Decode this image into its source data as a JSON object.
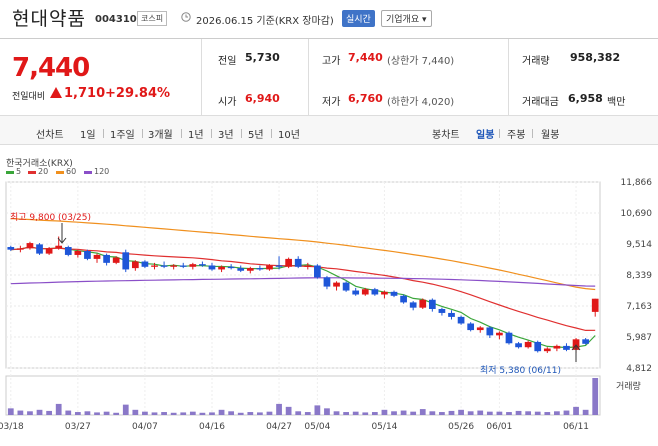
{
  "header": {
    "stock_name": "현대약품",
    "stock_code": "004310",
    "market_badge": "코스피",
    "date_info": "2026.06.15 기준(KRX 장마감)",
    "realtime_label": "실시간",
    "company_button_label": "기업개요 ▾"
  },
  "price": {
    "current": "7,440",
    "change_label": "전일대비",
    "change_value": "1,710",
    "change_pct": "+29.84%",
    "up_color": "#e01818"
  },
  "stats": {
    "prev_close_label": "전일",
    "prev_close": "5,730",
    "high_label": "고가",
    "high": "7,440",
    "upper_limit": "(상한가 7,440)",
    "volume_label": "거래량",
    "volume": "958,382",
    "open_label": "시가",
    "open": "6,940",
    "low_label": "저가",
    "low": "6,760",
    "lower_limit": "(하한가 4,020)",
    "amount_label": "거래대금",
    "amount": "6,958",
    "amount_unit": "백만"
  },
  "period_tabs": {
    "line_chart": "선차트",
    "items": [
      "1일",
      "1주일",
      "3개월",
      "1년",
      "3년",
      "5년",
      "10년"
    ],
    "candle_chart": "봉차트",
    "candle_items": [
      "일봉",
      "주봉",
      "월봉"
    ],
    "active_candle": "일봉"
  },
  "chart": {
    "exchange": "한국거래소(KRX)",
    "legend": [
      {
        "label": "5",
        "color": "#3aa63a"
      },
      {
        "label": "20",
        "color": "#e03030"
      },
      {
        "label": "60",
        "color": "#f0901e"
      },
      {
        "label": "120",
        "color": "#8a4fc8"
      }
    ],
    "y_ticks": [
      "11,866",
      "10,690",
      "9,514",
      "8,339",
      "7,163",
      "5,987",
      "4,812"
    ],
    "x_ticks": [
      "03/18",
      "03/27",
      "04/07",
      "04/16",
      "04/27",
      "05/04",
      "05/14",
      "05/26",
      "06/01",
      "06/11"
    ],
    "high_annotation": "최고 9,800 (03/25)",
    "low_annotation": "최저 5,380 (06/11)",
    "volume_label": "거래량"
  },
  "chart_data": {
    "type": "candlestick",
    "ylim": [
      4812,
      11866
    ],
    "dates": [
      "03/18",
      "03/19",
      "03/20",
      "03/23",
      "03/24",
      "03/25",
      "03/26",
      "03/27",
      "03/30",
      "03/31",
      "04/01",
      "04/02",
      "04/03",
      "04/06",
      "04/07",
      "04/08",
      "04/09",
      "04/10",
      "04/13",
      "04/14",
      "04/15",
      "04/16",
      "04/17",
      "04/20",
      "04/21",
      "04/22",
      "04/23",
      "04/24",
      "04/27",
      "04/28",
      "04/29",
      "04/30",
      "05/04",
      "05/06",
      "05/07",
      "05/08",
      "05/11",
      "05/12",
      "05/13",
      "05/14",
      "05/15",
      "05/18",
      "05/19",
      "05/20",
      "05/21",
      "05/22",
      "05/25",
      "05/26",
      "05/27",
      "05/28",
      "05/29",
      "06/01",
      "06/02",
      "06/03",
      "06/04",
      "06/05",
      "06/08",
      "06/09",
      "06/10",
      "06/11",
      "06/12",
      "06/15"
    ],
    "ohlc": [
      [
        9400,
        9450,
        9250,
        9300
      ],
      [
        9300,
        9450,
        9200,
        9350
      ],
      [
        9350,
        9600,
        9300,
        9550
      ],
      [
        9500,
        9550,
        9100,
        9150
      ],
      [
        9150,
        9400,
        9100,
        9350
      ],
      [
        9350,
        9800,
        9300,
        9450
      ],
      [
        9400,
        9450,
        9050,
        9100
      ],
      [
        9100,
        9300,
        9000,
        9250
      ],
      [
        9250,
        9300,
        8900,
        8950
      ],
      [
        8950,
        9150,
        8800,
        9100
      ],
      [
        9100,
        9150,
        8700,
        8800
      ],
      [
        8800,
        9050,
        8750,
        9000
      ],
      [
        9200,
        9300,
        8450,
        8550
      ],
      [
        8600,
        8900,
        8500,
        8850
      ],
      [
        8850,
        8900,
        8600,
        8650
      ],
      [
        8650,
        8800,
        8550,
        8700
      ],
      [
        8700,
        8850,
        8600,
        8650
      ],
      [
        8650,
        8750,
        8550,
        8700
      ],
      [
        8700,
        8800,
        8600,
        8650
      ],
      [
        8650,
        8800,
        8550,
        8750
      ],
      [
        8750,
        8850,
        8650,
        8700
      ],
      [
        8700,
        8800,
        8500,
        8550
      ],
      [
        8550,
        8700,
        8450,
        8650
      ],
      [
        8650,
        8750,
        8550,
        8600
      ],
      [
        8600,
        8700,
        8450,
        8500
      ],
      [
        8500,
        8650,
        8400,
        8600
      ],
      [
        8600,
        8700,
        8500,
        8550
      ],
      [
        8550,
        8750,
        8500,
        8700
      ],
      [
        8700,
        9050,
        8550,
        8650
      ],
      [
        8650,
        9000,
        8600,
        8950
      ],
      [
        8950,
        9050,
        8600,
        8650
      ],
      [
        8650,
        8800,
        8550,
        8700
      ],
      [
        8700,
        8750,
        8200,
        8250
      ],
      [
        8250,
        8300,
        7800,
        7900
      ],
      [
        7900,
        8100,
        7750,
        8050
      ],
      [
        8050,
        8100,
        7700,
        7750
      ],
      [
        7750,
        7850,
        7550,
        7600
      ],
      [
        7600,
        7850,
        7550,
        7800
      ],
      [
        7800,
        7850,
        7550,
        7600
      ],
      [
        7600,
        7750,
        7450,
        7700
      ],
      [
        7700,
        7750,
        7500,
        7550
      ],
      [
        7550,
        7600,
        7250,
        7300
      ],
      [
        7300,
        7350,
        7000,
        7100
      ],
      [
        7100,
        7450,
        7050,
        7400
      ],
      [
        7400,
        7450,
        6950,
        7050
      ],
      [
        7050,
        7100,
        6800,
        6900
      ],
      [
        6900,
        7000,
        6650,
        6750
      ],
      [
        6750,
        6800,
        6450,
        6500
      ],
      [
        6500,
        6550,
        6200,
        6250
      ],
      [
        6250,
        6400,
        6150,
        6350
      ],
      [
        6350,
        6400,
        5950,
        6050
      ],
      [
        6050,
        6200,
        5900,
        6150
      ],
      [
        6150,
        6200,
        5700,
        5750
      ],
      [
        5750,
        5800,
        5550,
        5600
      ],
      [
        5600,
        5850,
        5550,
        5800
      ],
      [
        5800,
        5850,
        5400,
        5450
      ],
      [
        5450,
        5600,
        5380,
        5550
      ],
      [
        5550,
        5700,
        5450,
        5650
      ],
      [
        5650,
        5750,
        5450,
        5500
      ],
      [
        5500,
        5950,
        5380,
        5900
      ],
      [
        5900,
        5950,
        5700,
        5730
      ],
      [
        6940,
        7440,
        6760,
        7440
      ]
    ],
    "volume": [
      18,
      12,
      10,
      14,
      11,
      30,
      12,
      8,
      10,
      7,
      9,
      6,
      28,
      14,
      9,
      7,
      8,
      6,
      7,
      9,
      6,
      7,
      14,
      10,
      6,
      8,
      7,
      9,
      30,
      22,
      10,
      8,
      26,
      18,
      10,
      8,
      9,
      7,
      8,
      14,
      10,
      12,
      9,
      16,
      10,
      8,
      11,
      14,
      10,
      12,
      9,
      9,
      8,
      11,
      10,
      9,
      8,
      10,
      12,
      22,
      14,
      100
    ],
    "ma_notes": "MA5 green, MA20 red, MA60 orange, MA120 purple"
  }
}
